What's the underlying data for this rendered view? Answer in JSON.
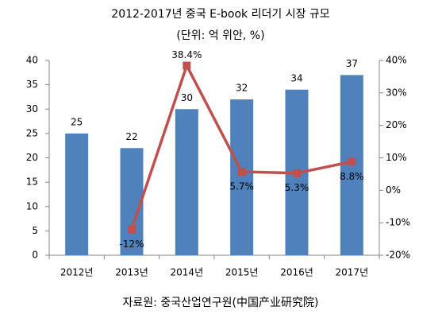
{
  "chart_data": {
    "type": "bar_line",
    "title": "2012-2017년 중국 E-book 리더기 시장 규모",
    "subtitle": "(단위: 억 위안, %)",
    "source": "자료원: 중국산업연구원(中国产业研究院)",
    "categories": [
      "2012년",
      "2013년",
      "2014년",
      "2015년",
      "2016년",
      "2017년"
    ],
    "series": [
      {
        "type": "bar",
        "color": "#4f81bd",
        "values": [
          25,
          22,
          30,
          32,
          34,
          37
        ]
      },
      {
        "type": "line",
        "axis": "y2",
        "color": "#c0504d",
        "values": [
          null,
          -12,
          38.4,
          5.7,
          5.3,
          8.8
        ],
        "value_labels": [
          null,
          "-12%",
          "38.4%",
          "5.7%",
          "5.3%",
          "8.8%"
        ]
      }
    ],
    "ylim": [
      0,
      40
    ],
    "yticks": [
      0,
      5,
      10,
      15,
      20,
      25,
      30,
      35,
      40
    ],
    "y2lim": [
      -20,
      40
    ],
    "y2ticks": [
      {
        "value": -20,
        "label": "-20%"
      },
      {
        "value": -10,
        "label": "-10%"
      },
      {
        "value": 0,
        "label": "0%"
      },
      {
        "value": 10,
        "label": "10%"
      },
      {
        "value": 20,
        "label": "20%"
      },
      {
        "value": 30,
        "label": "30%"
      },
      {
        "value": 40,
        "label": "40%"
      }
    ],
    "grid": false
  }
}
